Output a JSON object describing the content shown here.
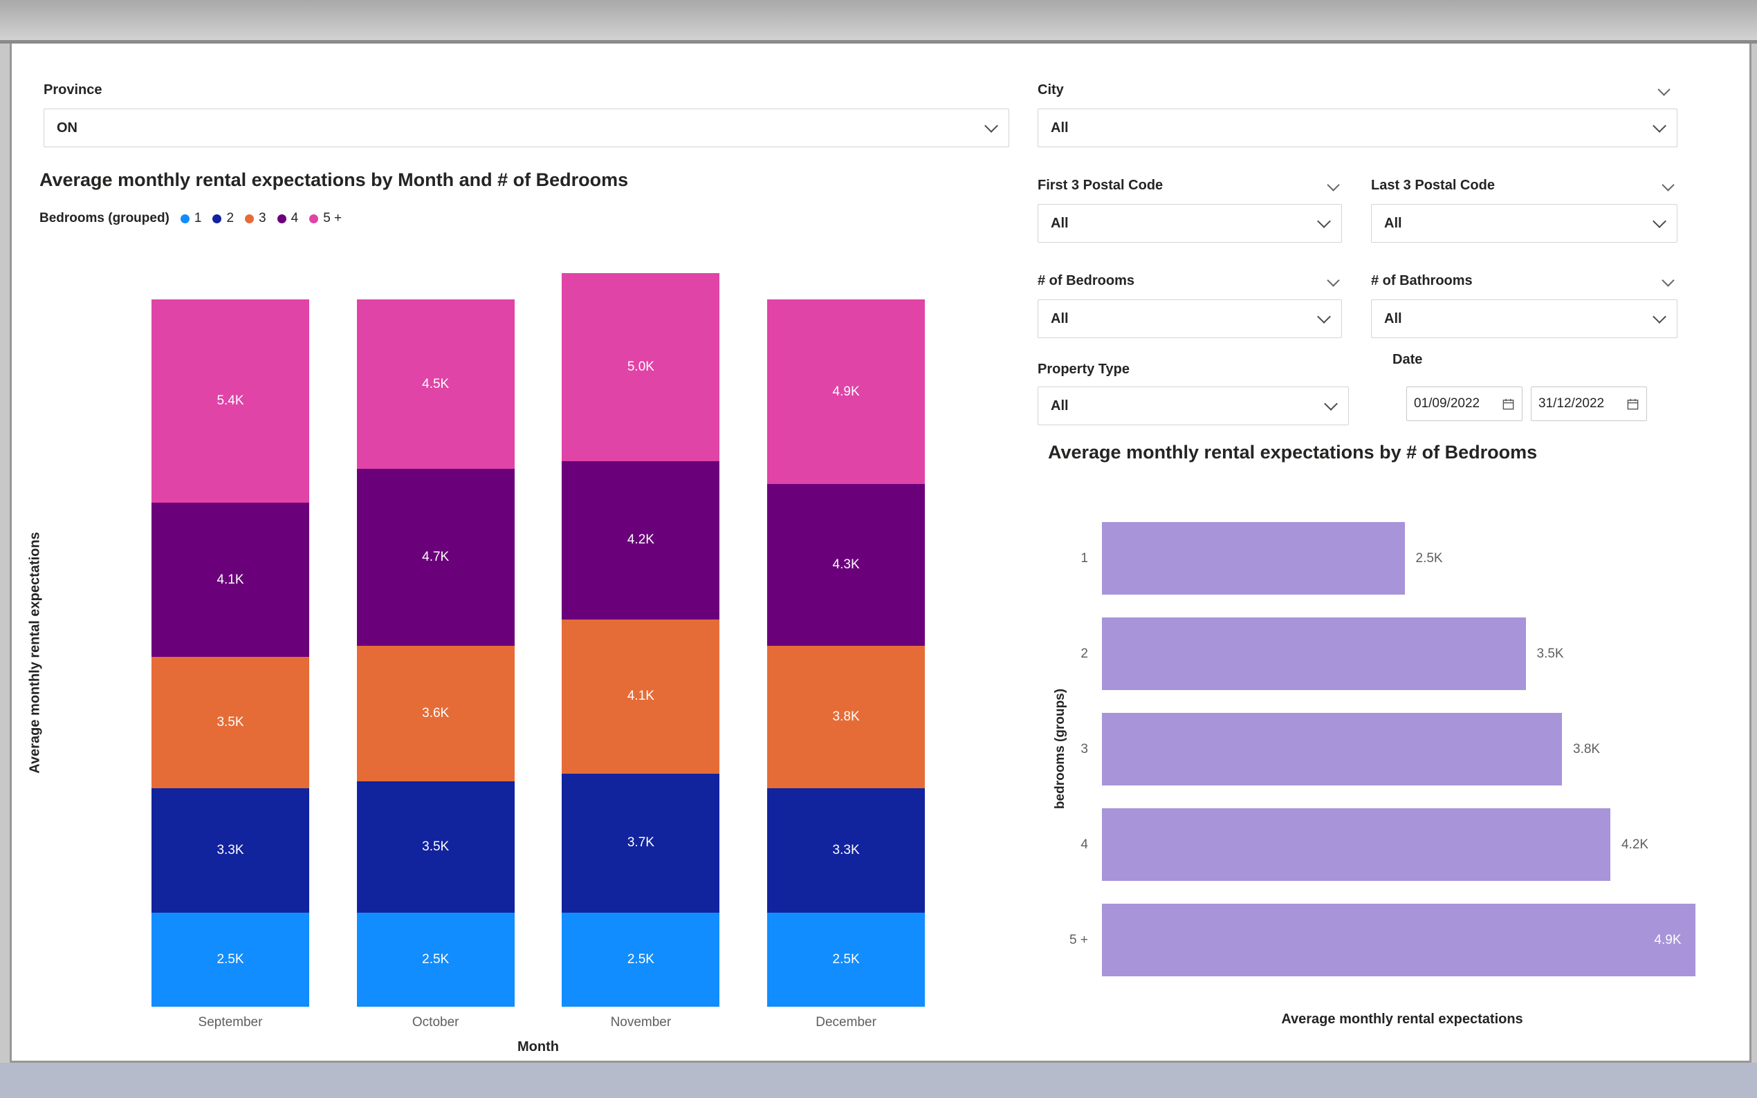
{
  "filters": {
    "province": {
      "label": "Province",
      "value": "ON"
    },
    "city": {
      "label": "City",
      "value": "All"
    },
    "first3": {
      "label": "First 3 Postal Code",
      "value": "All"
    },
    "last3": {
      "label": "Last 3 Postal Code",
      "value": "All"
    },
    "bedrooms": {
      "label": "# of Bedrooms",
      "value": "All"
    },
    "bathrooms": {
      "label": "# of Bathrooms",
      "value": "All"
    },
    "property_type": {
      "label": "Property Type",
      "value": "All"
    },
    "date": {
      "label": "Date",
      "start": "01/09/2022",
      "end": "31/12/2022"
    }
  },
  "chart_data": [
    {
      "type": "bar",
      "subtype": "stacked-column",
      "title": "Average monthly rental expectations by Month and # of Bedrooms",
      "legend_title": "Bedrooms (grouped)",
      "legend_position": "top",
      "grid": false,
      "categories": [
        "September",
        "October",
        "November",
        "December"
      ],
      "series": [
        {
          "name": "1",
          "color": "#118DFF",
          "values": [
            2.5,
            2.5,
            2.5,
            2.5
          ],
          "labels": [
            "2.5K",
            "2.5K",
            "2.5K",
            "2.5K"
          ]
        },
        {
          "name": "2",
          "color": "#12239E",
          "values": [
            3.3,
            3.5,
            3.7,
            3.3
          ],
          "labels": [
            "3.3K",
            "3.5K",
            "3.7K",
            "3.3K"
          ]
        },
        {
          "name": "3",
          "color": "#E66C37",
          "values": [
            3.5,
            3.6,
            4.1,
            3.8
          ],
          "labels": [
            "3.5K",
            "3.6K",
            "4.1K",
            "3.8K"
          ]
        },
        {
          "name": "4",
          "color": "#6B007B",
          "values": [
            4.1,
            4.7,
            4.2,
            4.3
          ],
          "labels": [
            "4.1K",
            "4.7K",
            "4.2K",
            "4.3K"
          ]
        },
        {
          "name": "5 +",
          "color": "#E044A7",
          "values": [
            5.4,
            4.5,
            5.0,
            4.9
          ],
          "labels": [
            "5.4K",
            "4.5K",
            "5.0K",
            "4.9K"
          ]
        }
      ],
      "xlabel": "Month",
      "ylabel": "Average monthly rental expectations"
    },
    {
      "type": "bar",
      "subtype": "horizontal",
      "title": "Average monthly rental expectations by # of Bedrooms",
      "grid": false,
      "categories": [
        "1",
        "2",
        "3",
        "4",
        "5 +"
      ],
      "values": [
        2.5,
        3.5,
        3.8,
        4.2,
        4.9
      ],
      "labels": [
        "2.5K",
        "3.5K",
        "3.8K",
        "4.2K",
        "4.9K"
      ],
      "color": "#A894D9",
      "xlabel": "Average monthly rental expectations",
      "ylabel": "bedrooms (groups)"
    }
  ]
}
